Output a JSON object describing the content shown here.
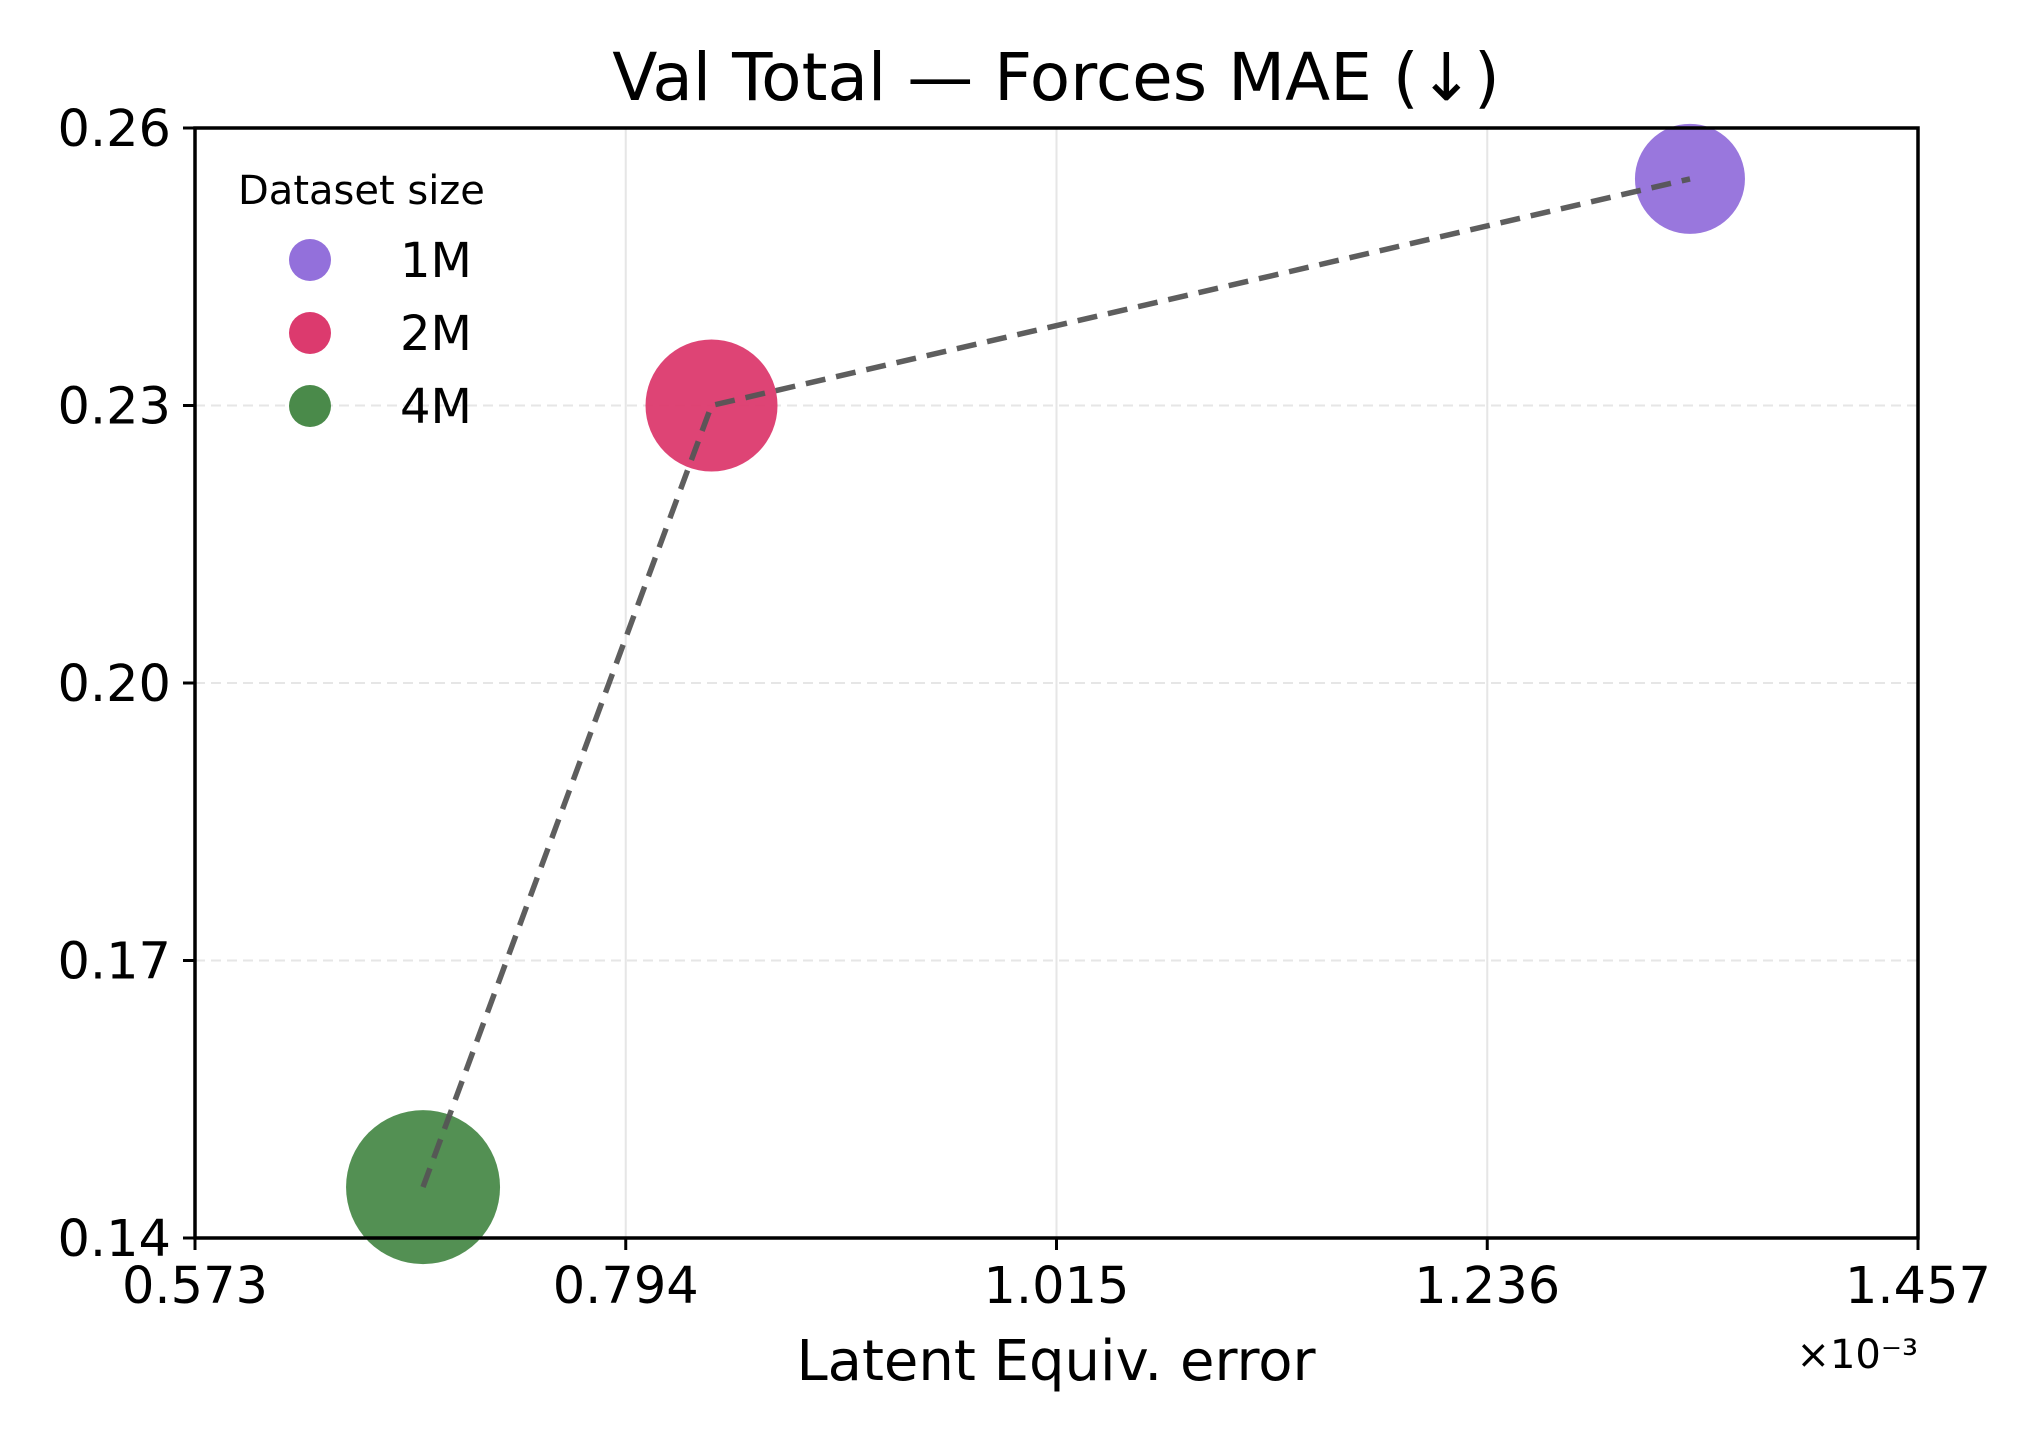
{
  "chart_data": {
    "type": "scatter",
    "title": "Val Total — Forces MAE (↓)",
    "xlabel": "Latent Equiv. error",
    "ylabel": "",
    "x_offset_label": "×10⁻³",
    "xlim": [
      0.573,
      1.457
    ],
    "ylim": [
      0.14,
      0.26
    ],
    "xticks": [
      "0.573",
      "0.794",
      "1.015",
      "1.236",
      "1.457"
    ],
    "yticks": [
      "0.26",
      "0.23",
      "0.20",
      "0.17",
      "0.14"
    ],
    "grid": true,
    "legend": {
      "title": "Dataset size",
      "placement": "top-left"
    },
    "series": [
      {
        "name": "1M",
        "x": 1.34,
        "y": 0.2545,
        "color": "#9370DB"
      },
      {
        "name": "2M",
        "x": 0.838,
        "y": 0.23,
        "color": "#DC3A6E"
      },
      {
        "name": "4M",
        "x": 0.69,
        "y": 0.1455,
        "color": "#4A8A4A"
      }
    ],
    "line": {
      "style": "dashed",
      "color": "#555555",
      "order": [
        "4M",
        "2M",
        "1M"
      ]
    }
  }
}
